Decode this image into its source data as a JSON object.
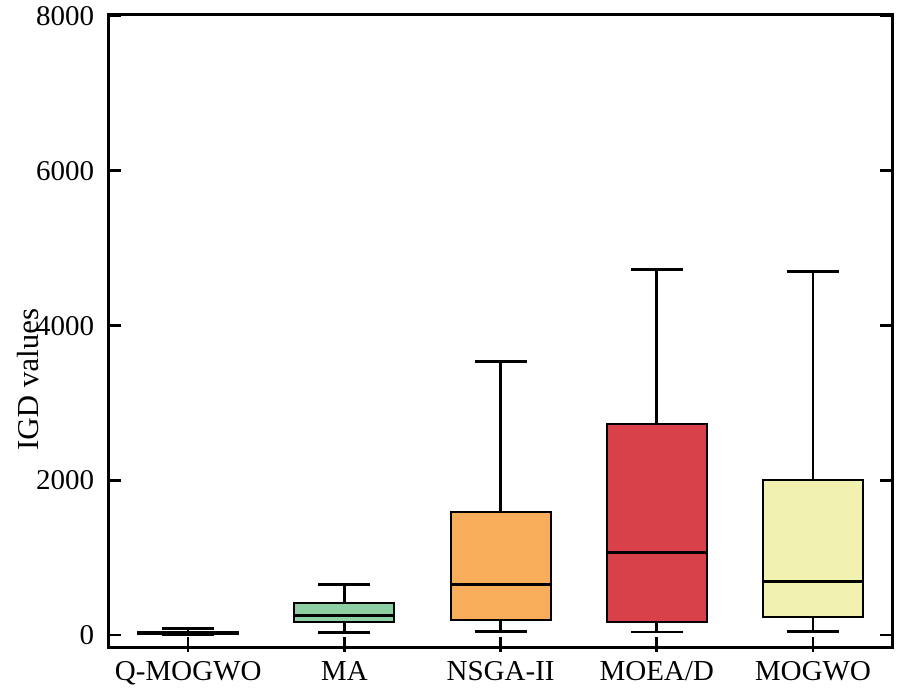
{
  "figure": {
    "background": "#ffffff",
    "axis_color": "#000000"
  },
  "chart_data": {
    "type": "boxplot",
    "title": "",
    "xlabel": "",
    "ylabel": "IGD values",
    "categories": [
      "Q-MOGWO",
      "MA",
      "NSGA-II",
      "MOEA/D",
      "MOGWO"
    ],
    "y_ticks": [
      0,
      2000,
      4000,
      6000,
      8000
    ],
    "ylim": [
      -140,
      8000
    ],
    "grid": false,
    "legend": "none",
    "series": [
      {
        "name": "Q-MOGWO",
        "whisker_low": 5,
        "q1": 15,
        "median": 35,
        "q3": 60,
        "whisker_high": 85,
        "fill": "#1a1a1a"
      },
      {
        "name": "MA",
        "whisker_low": 30,
        "q1": 160,
        "median": 260,
        "q3": 430,
        "whisker_high": 650,
        "fill": "#8ecfa3"
      },
      {
        "name": "NSGA-II",
        "whisker_low": 50,
        "q1": 180,
        "median": 650,
        "q3": 1610,
        "whisker_high": 3540,
        "fill": "#f8ad5b"
      },
      {
        "name": "MOEA/D",
        "whisker_low": 40,
        "q1": 160,
        "median": 1070,
        "q3": 2740,
        "whisker_high": 4720,
        "fill": "#d8404a"
      },
      {
        "name": "MOGWO",
        "whisker_low": 50,
        "q1": 220,
        "median": 690,
        "q3": 2020,
        "whisker_high": 4700,
        "fill": "#f2f2b0"
      }
    ]
  }
}
